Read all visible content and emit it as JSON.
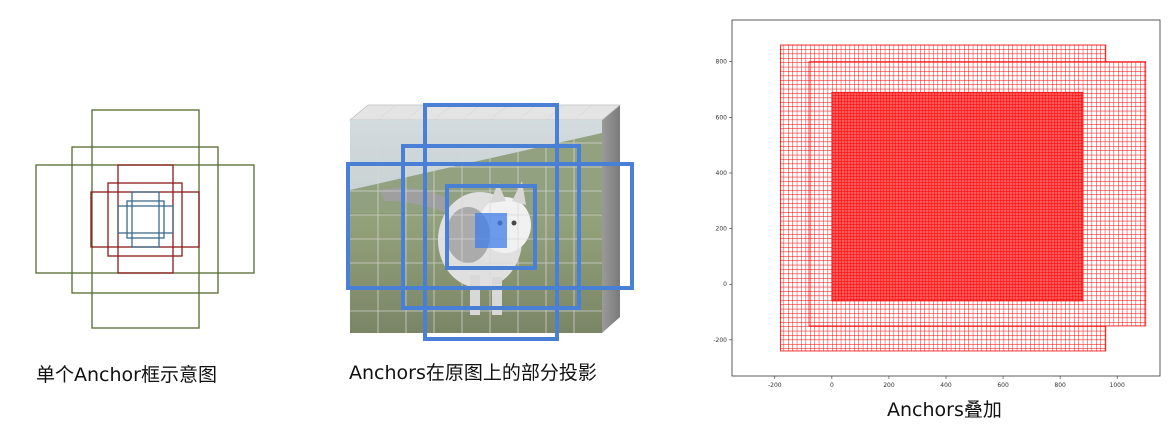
{
  "panels": [
    {
      "id": "single-anchor",
      "caption": "单个Anchor框示意图",
      "colors": {
        "large": "#556b2f",
        "medium": "#8b1a1a",
        "small": "#3d6a8c"
      }
    },
    {
      "id": "anchors-on-image",
      "caption": "Anchors在原图上的部分投影",
      "colors": {
        "box": "#4a7fd6",
        "grid": "#d8d8d8"
      }
    },
    {
      "id": "anchors-overlay",
      "caption": "Anchors叠加",
      "colors": {
        "grid": "#ff0000",
        "fill": "#ff0000"
      }
    }
  ],
  "chart_data": {
    "type": "heatmap",
    "title": "",
    "xlabel": "",
    "ylabel": "",
    "x_ticks": [
      "-200",
      "0",
      "200",
      "400",
      "600",
      "800",
      "1000"
    ],
    "y_ticks": [
      "800",
      "600",
      "400",
      "200",
      "0",
      "-200"
    ],
    "xlim": [
      -350,
      1150
    ],
    "ylim": [
      -330,
      950
    ],
    "grid": true,
    "series": [
      {
        "values": [
          -180,
          960,
          -240,
          860
        ]
      },
      {
        "values": [
          -80,
          1100,
          -150,
          800
        ]
      },
      {
        "values": [
          0,
          880,
          -60,
          690
        ]
      }
    ]
  }
}
